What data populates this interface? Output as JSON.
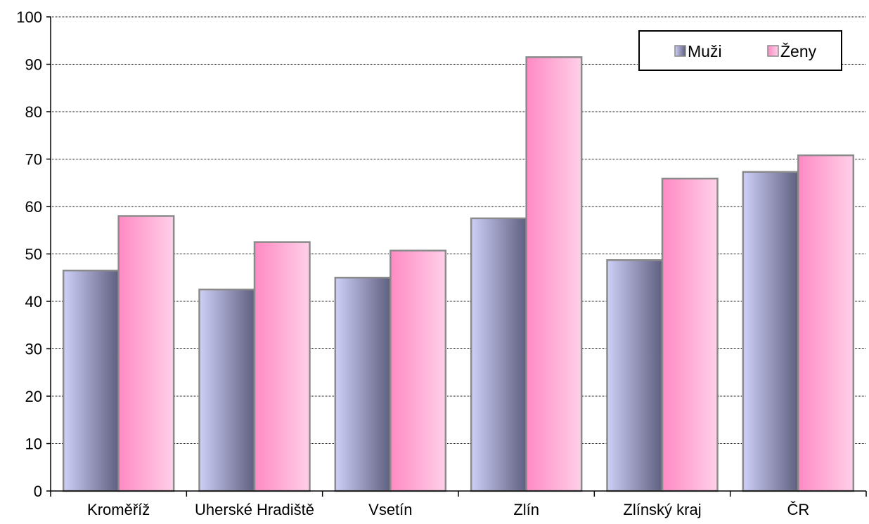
{
  "chart_data": {
    "type": "bar",
    "categories": [
      "Kroměříž",
      "Uherské Hradiště",
      "Vsetín",
      "Zlín",
      "Zlínský kraj",
      "ČR"
    ],
    "series": [
      {
        "name": "Muži",
        "values": [
          46.5,
          42.5,
          45.0,
          57.5,
          48.7,
          67.3
        ]
      },
      {
        "name": "Ženy",
        "values": [
          58.0,
          52.5,
          50.7,
          91.5,
          65.9,
          70.8
        ]
      }
    ],
    "ylim": [
      0,
      100
    ],
    "yticks": [
      0,
      10,
      20,
      30,
      40,
      50,
      60,
      70,
      80,
      90,
      100
    ],
    "grid": true,
    "legend_position": "top-right",
    "colors": {
      "Muži": [
        "#cfd0f8",
        "#5f5f80"
      ],
      "Ženy": [
        "#ff8ac4",
        "#ffd0e8"
      ],
      "grid": "#000000",
      "bar_border": "#8a8a8a"
    }
  }
}
